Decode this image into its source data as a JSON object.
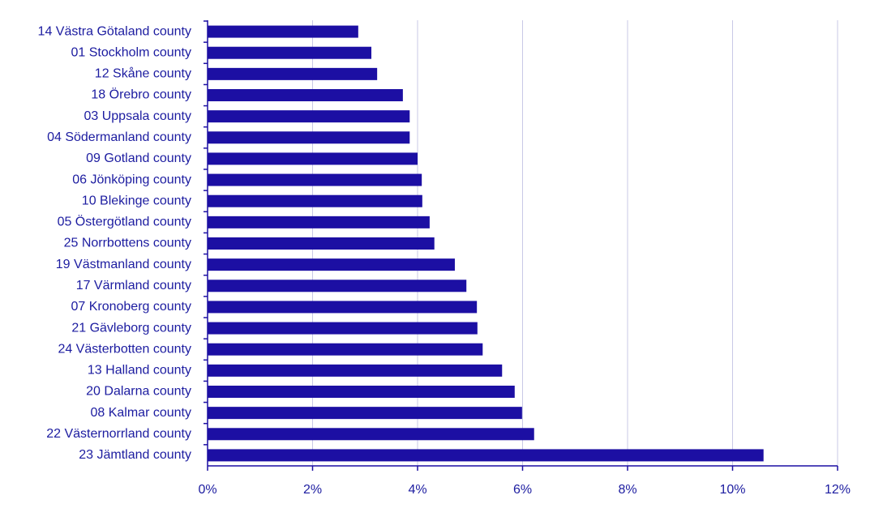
{
  "chart_data": {
    "type": "bar",
    "orientation": "horizontal",
    "categories": [
      "14 Västra Götaland county",
      "01 Stockholm county",
      "12 Skåne county",
      "18 Örebro county",
      "03 Uppsala county",
      "04 Södermanland county",
      "09 Gotland county",
      "06 Jönköping county",
      "10 Blekinge county",
      "05 Östergötland county",
      "25 Norrbottens county",
      "19 Västmanland county",
      "17 Värmland county",
      "07 Kronoberg county",
      "21 Gävleborg county",
      "24 Västerbotten county",
      "13 Halland county",
      "20 Dalarna county",
      "08 Kalmar county",
      "22 Västernorrland county",
      "23 Jämtland county"
    ],
    "values": [
      2.87,
      3.12,
      3.23,
      3.72,
      3.85,
      3.85,
      4.0,
      4.08,
      4.09,
      4.23,
      4.32,
      4.71,
      4.93,
      5.13,
      5.14,
      5.24,
      5.61,
      5.85,
      5.99,
      6.22,
      10.59
    ],
    "color": "#1c0fa3",
    "xlim": [
      0,
      12
    ],
    "xticks": [
      {
        "value": 0,
        "label": "0%"
      },
      {
        "value": 2,
        "label": "2%"
      },
      {
        "value": 4,
        "label": "4%"
      },
      {
        "value": 6,
        "label": "6%"
      },
      {
        "value": 8,
        "label": "8%"
      },
      {
        "value": 10,
        "label": "10%"
      },
      {
        "value": 12,
        "label": "12%"
      }
    ],
    "grid": true
  }
}
